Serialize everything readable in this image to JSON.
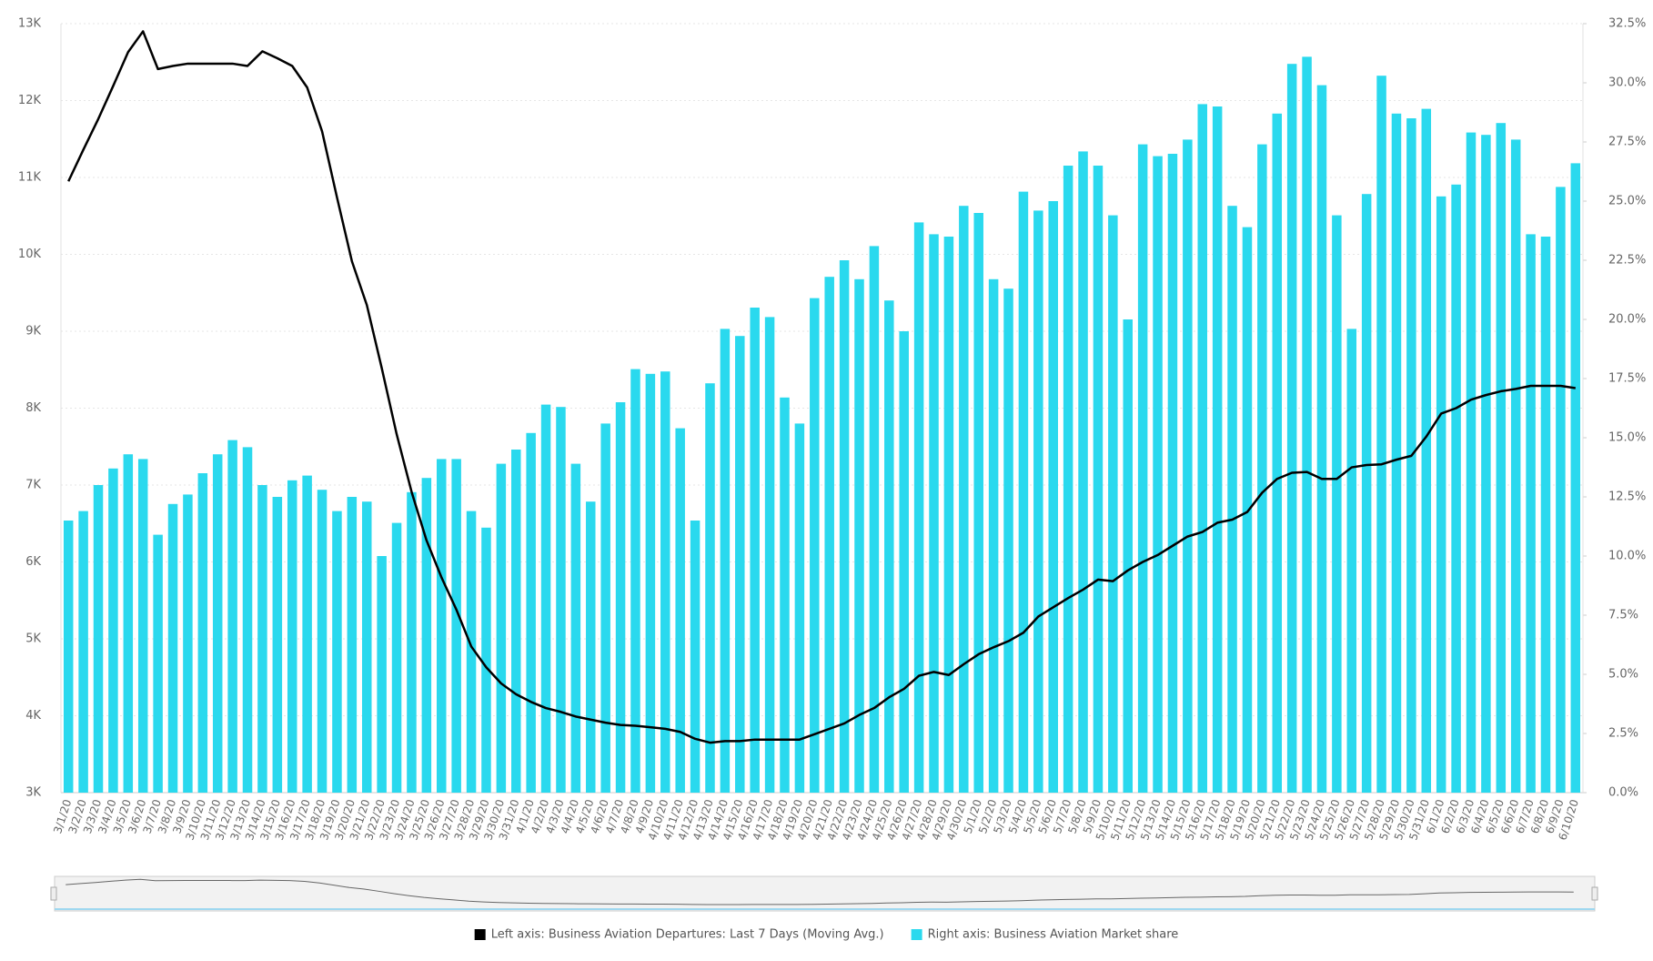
{
  "chart_data": {
    "type": "combo",
    "categories": [
      "3/1/20",
      "3/2/20",
      "3/3/20",
      "3/4/20",
      "3/5/20",
      "3/6/20",
      "3/7/20",
      "3/8/20",
      "3/9/20",
      "3/10/20",
      "3/11/20",
      "3/12/20",
      "3/13/20",
      "3/14/20",
      "3/15/20",
      "3/16/20",
      "3/17/20",
      "3/18/20",
      "3/19/20",
      "3/20/20",
      "3/21/20",
      "3/22/20",
      "3/23/20",
      "3/24/20",
      "3/25/20",
      "3/26/20",
      "3/27/20",
      "3/28/20",
      "3/29/20",
      "3/30/20",
      "3/31/20",
      "4/1/20",
      "4/2/20",
      "4/3/20",
      "4/4/20",
      "4/5/20",
      "4/6/20",
      "4/7/20",
      "4/8/20",
      "4/9/20",
      "4/10/20",
      "4/11/20",
      "4/12/20",
      "4/13/20",
      "4/14/20",
      "4/15/20",
      "4/16/20",
      "4/17/20",
      "4/18/20",
      "4/19/20",
      "4/20/20",
      "4/21/20",
      "4/22/20",
      "4/23/20",
      "4/24/20",
      "4/25/20",
      "4/26/20",
      "4/27/20",
      "4/28/20",
      "4/29/20",
      "4/30/20",
      "5/1/20",
      "5/2/20",
      "5/3/20",
      "5/4/20",
      "5/5/20",
      "5/6/20",
      "5/7/20",
      "5/8/20",
      "5/9/20",
      "5/10/20",
      "5/11/20",
      "5/12/20",
      "5/13/20",
      "5/14/20",
      "5/15/20",
      "5/16/20",
      "5/17/20",
      "5/18/20",
      "5/19/20",
      "5/20/20",
      "5/21/20",
      "5/22/20",
      "5/23/20",
      "5/24/20",
      "5/25/20",
      "5/26/20",
      "5/27/20",
      "5/28/20",
      "5/29/20",
      "5/30/20",
      "5/31/20",
      "6/1/20",
      "6/2/20",
      "6/3/20",
      "6/4/20",
      "6/5/20",
      "6/6/20",
      "6/7/20",
      "6/8/20",
      "6/9/20",
      "6/10/20"
    ],
    "series": [
      {
        "name": "Left axis: Business Aviation Departures: Last 7 Days (Moving Avg.)",
        "type": "line",
        "axis": "y",
        "color": "#000000",
        "values": [
          10950,
          11360,
          11760,
          12190,
          12630,
          12900,
          12410,
          12450,
          12480,
          12480,
          12480,
          12480,
          12450,
          12640,
          12550,
          12450,
          12170,
          11600,
          10740,
          9910,
          9340,
          8520,
          7660,
          6910,
          6280,
          5800,
          5380,
          4900,
          4630,
          4420,
          4280,
          4180,
          4100,
          4050,
          3990,
          3950,
          3910,
          3880,
          3870,
          3850,
          3830,
          3790,
          3700,
          3650,
          3670,
          3670,
          3690,
          3690,
          3690,
          3690,
          3760,
          3830,
          3900,
          4010,
          4100,
          4240,
          4350,
          4520,
          4570,
          4530,
          4670,
          4800,
          4890,
          4970,
          5080,
          5290,
          5410,
          5530,
          5640,
          5770,
          5750,
          5890,
          6000,
          6090,
          6210,
          6330,
          6390,
          6510,
          6550,
          6650,
          6900,
          7080,
          7160,
          7170,
          7080,
          7080,
          7230,
          7260,
          7270,
          7330,
          7380,
          7630,
          7930,
          8000,
          8110,
          8170,
          8220,
          8250,
          8290,
          8290,
          8290,
          8260
        ]
      },
      {
        "name": "Right axis: Business Aviation Market share",
        "type": "bar",
        "axis": "y2",
        "color": "#2ad9ee",
        "values": [
          11.5,
          11.9,
          13.0,
          13.7,
          14.3,
          14.1,
          10.9,
          12.2,
          12.6,
          13.5,
          14.3,
          14.9,
          14.6,
          13.0,
          12.5,
          13.2,
          13.4,
          12.8,
          11.9,
          12.5,
          12.3,
          10.0,
          11.4,
          12.7,
          13.3,
          14.1,
          14.1,
          11.9,
          11.2,
          13.9,
          14.5,
          15.2,
          16.4,
          16.3,
          13.9,
          12.3,
          15.6,
          16.5,
          17.9,
          17.7,
          17.8,
          15.4,
          11.5,
          17.3,
          19.6,
          19.3,
          20.5,
          20.1,
          16.7,
          15.6,
          20.9,
          21.8,
          22.5,
          21.7,
          23.1,
          20.8,
          19.5,
          24.1,
          23.6,
          23.5,
          24.8,
          24.5,
          21.7,
          21.3,
          25.4,
          24.6,
          25.0,
          26.5,
          27.1,
          26.5,
          24.4,
          20.0,
          27.4,
          26.9,
          27.0,
          27.6,
          29.1,
          29.0,
          24.8,
          23.9,
          27.4,
          28.7,
          30.8,
          31.1,
          29.9,
          24.4,
          19.6,
          25.3,
          30.3,
          28.7,
          28.5,
          28.9,
          25.2,
          25.7,
          27.9,
          27.8,
          28.3,
          27.6,
          23.6,
          23.5,
          25.6,
          26.6
        ]
      }
    ],
    "ylim": [
      3000,
      13000
    ],
    "yticks": [
      {
        "value": 3000,
        "label": "3K"
      },
      {
        "value": 4000,
        "label": "4K"
      },
      {
        "value": 5000,
        "label": "5K"
      },
      {
        "value": 6000,
        "label": "6K"
      },
      {
        "value": 7000,
        "label": "7K"
      },
      {
        "value": 8000,
        "label": "8K"
      },
      {
        "value": 9000,
        "label": "9K"
      },
      {
        "value": 10000,
        "label": "10K"
      },
      {
        "value": 11000,
        "label": "11K"
      },
      {
        "value": 12000,
        "label": "12K"
      },
      {
        "value": 13000,
        "label": "13K"
      }
    ],
    "y2lim": [
      0,
      32.5
    ],
    "y2ticks": [
      {
        "value": 0,
        "label": "0.0%"
      },
      {
        "value": 2.5,
        "label": "2.5%"
      },
      {
        "value": 5,
        "label": "5.0%"
      },
      {
        "value": 7.5,
        "label": "7.5%"
      },
      {
        "value": 10,
        "label": "10.0%"
      },
      {
        "value": 12.5,
        "label": "12.5%"
      },
      {
        "value": 15,
        "label": "15.0%"
      },
      {
        "value": 17.5,
        "label": "17.5%"
      },
      {
        "value": 20,
        "label": "20.0%"
      },
      {
        "value": 22.5,
        "label": "22.5%"
      },
      {
        "value": 25,
        "label": "25.0%"
      },
      {
        "value": 27.5,
        "label": "27.5%"
      },
      {
        "value": 30,
        "label": "30.0%"
      },
      {
        "value": 32.5,
        "label": "32.5%"
      }
    ],
    "grid": true,
    "legend": "bottom"
  }
}
